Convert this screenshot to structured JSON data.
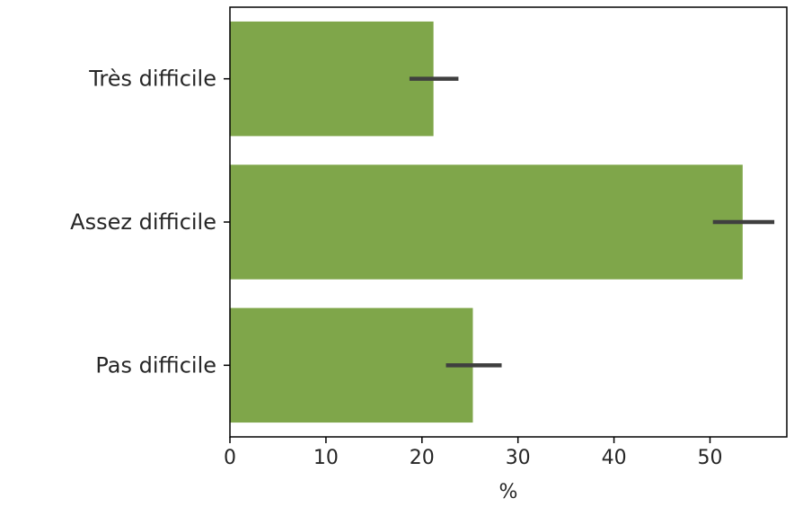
{
  "chart_data": {
    "type": "bar",
    "orientation": "horizontal",
    "categories": [
      "Très difficile",
      "Assez difficile",
      "Pas difficile"
    ],
    "categories_display": [
      "Très difficile",
      "Assez difficile",
      "Pas difficile"
    ],
    "values": [
      21.2,
      53.4,
      25.3
    ],
    "error_bars": [
      [
        18.7,
        23.8
      ],
      [
        50.3,
        56.7
      ],
      [
        22.5,
        28.3
      ]
    ],
    "xlabel": "%",
    "ylabel": "",
    "title": "",
    "xlim": [
      0,
      58
    ],
    "xticks": [
      0,
      10,
      20,
      30,
      40,
      50
    ],
    "grid": false,
    "colors": {
      "bar": "#7fa64a",
      "error": "#3f3f3f",
      "axis": "#000000",
      "text": "#262626"
    }
  }
}
